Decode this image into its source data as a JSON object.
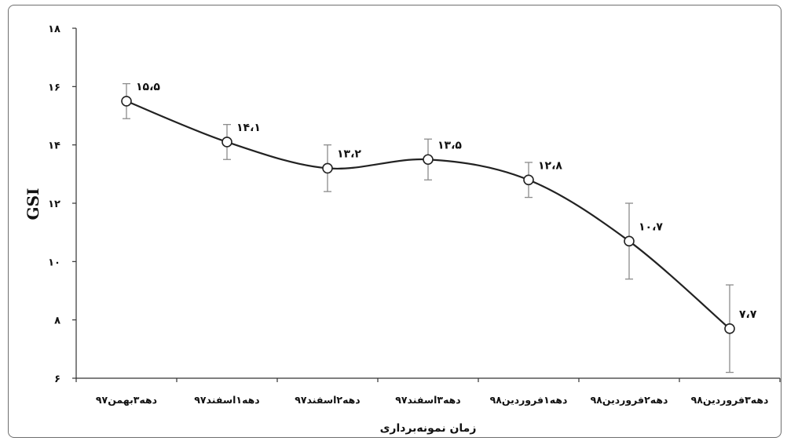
{
  "chart_data": {
    "type": "line",
    "title": "",
    "ylabel": "GSI",
    "xlabel": "زمان نمونه‌برداری",
    "ylim": [
      6,
      18
    ],
    "yticks": [
      6,
      8,
      10,
      12,
      14,
      16,
      18
    ],
    "ytick_labels": [
      "۶",
      "۸",
      "۱۰",
      "۱۲",
      "۱۴",
      "۱۶",
      "۱۸"
    ],
    "categories": [
      "دهه۳بهمن۹۷",
      "دهه۱اسفند۹۷",
      "دهه۲اسفند۹۷",
      "دهه۳اسفند۹۷",
      "دهه۱فروردین۹۸",
      "دهه۲فروردین۹۸",
      "دهه۳فروردین۹۸"
    ],
    "values": [
      15.5,
      14.1,
      13.2,
      13.5,
      12.8,
      10.7,
      7.7
    ],
    "value_labels": [
      "۱۵،۵",
      "۱۴،۱",
      "۱۳،۲",
      "۱۳،۵",
      "۱۲،۸",
      "۱۰،۷",
      "۷،۷"
    ],
    "error": [
      0.6,
      0.6,
      0.8,
      0.7,
      0.6,
      1.3,
      1.5
    ],
    "grid": false,
    "line_color": "#222222",
    "marker_fill": "#ffffff",
    "errorbar_color": "#8c8c8c"
  }
}
